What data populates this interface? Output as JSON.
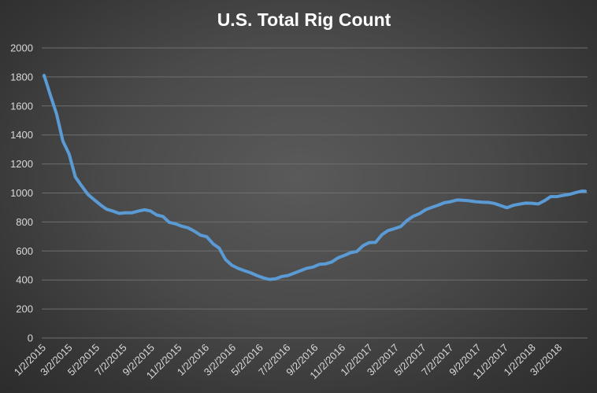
{
  "chart_data": {
    "type": "line",
    "title": "U.S. Total Rig Count",
    "xlabel": "",
    "ylabel": "",
    "ylim": [
      0,
      2000
    ],
    "yticks": [
      "0",
      "200",
      "400",
      "600",
      "800",
      "1000",
      "1200",
      "1400",
      "1600",
      "1800",
      "2000"
    ],
    "xtick_labels": [
      "1/2/2015",
      "3/2/2015",
      "5/2/2015",
      "7/2/2015",
      "9/2/2015",
      "11/2/2015",
      "1/2/2016",
      "3/2/2016",
      "5/2/2016",
      "7/2/2016",
      "9/2/2016",
      "11/2/2016",
      "1/2/2017",
      "3/2/2017",
      "5/2/2017",
      "7/2/2017",
      "9/2/2017",
      "11/2/2017",
      "1/2/2018",
      "3/2/2018"
    ],
    "grid": true,
    "legend": "none",
    "series": [
      {
        "x": [
          "2015-01-02",
          "2015-01-16",
          "2015-01-30",
          "2015-02-13",
          "2015-02-27",
          "2015-03-13",
          "2015-03-27",
          "2015-04-10",
          "2015-04-24",
          "2015-05-08",
          "2015-05-22",
          "2015-06-05",
          "2015-06-19",
          "2015-07-03",
          "2015-07-17",
          "2015-07-31",
          "2015-08-14",
          "2015-08-28",
          "2015-09-11",
          "2015-09-25",
          "2015-10-09",
          "2015-10-23",
          "2015-11-06",
          "2015-11-20",
          "2015-12-04",
          "2015-12-18",
          "2016-01-01",
          "2016-01-15",
          "2016-01-29",
          "2016-02-12",
          "2016-02-26",
          "2016-03-11",
          "2016-03-25",
          "2016-04-08",
          "2016-04-22",
          "2016-05-06",
          "2016-05-20",
          "2016-06-03",
          "2016-06-17",
          "2016-07-01",
          "2016-07-15",
          "2016-07-29",
          "2016-08-12",
          "2016-08-26",
          "2016-09-09",
          "2016-09-23",
          "2016-10-07",
          "2016-10-21",
          "2016-11-04",
          "2016-11-18",
          "2016-12-02",
          "2016-12-16",
          "2016-12-30",
          "2017-01-13",
          "2017-01-27",
          "2017-02-10",
          "2017-02-24",
          "2017-03-10",
          "2017-03-24",
          "2017-04-07",
          "2017-04-21",
          "2017-05-05",
          "2017-05-19",
          "2017-06-02",
          "2017-06-16",
          "2017-06-30",
          "2017-07-14",
          "2017-07-28",
          "2017-08-11",
          "2017-08-25",
          "2017-09-08",
          "2017-09-22",
          "2017-10-06",
          "2017-10-20",
          "2017-11-03",
          "2017-11-17",
          "2017-12-01",
          "2017-12-15",
          "2017-12-29",
          "2018-01-12",
          "2018-01-26",
          "2018-02-09",
          "2018-02-23",
          "2018-03-09",
          "2018-03-23",
          "2018-04-06",
          "2018-04-20",
          "2018-04-27"
        ],
        "values": [
          1811,
          1676,
          1543,
          1358,
          1267,
          1110,
          1048,
          990,
          954,
          918,
          888,
          875,
          859,
          863,
          863,
          874,
          884,
          876,
          848,
          838,
          798,
          787,
          771,
          760,
          737,
          709,
          698,
          650,
          619,
          541,
          502,
          480,
          464,
          450,
          431,
          415,
          404,
          408,
          424,
          431,
          447,
          464,
          481,
          489,
          508,
          511,
          524,
          553,
          569,
          588,
          597,
          637,
          658,
          659,
          712,
          741,
          754,
          768,
          809,
          839,
          857,
          885,
          901,
          916,
          933,
          940,
          952,
          950,
          946,
          940,
          936,
          935,
          928,
          913,
          898,
          915,
          923,
          930,
          929,
          924,
          947,
          975,
          975,
          984,
          990,
          1003,
          1013,
          1012
        ],
        "color": "#5b9bd5"
      }
    ]
  }
}
